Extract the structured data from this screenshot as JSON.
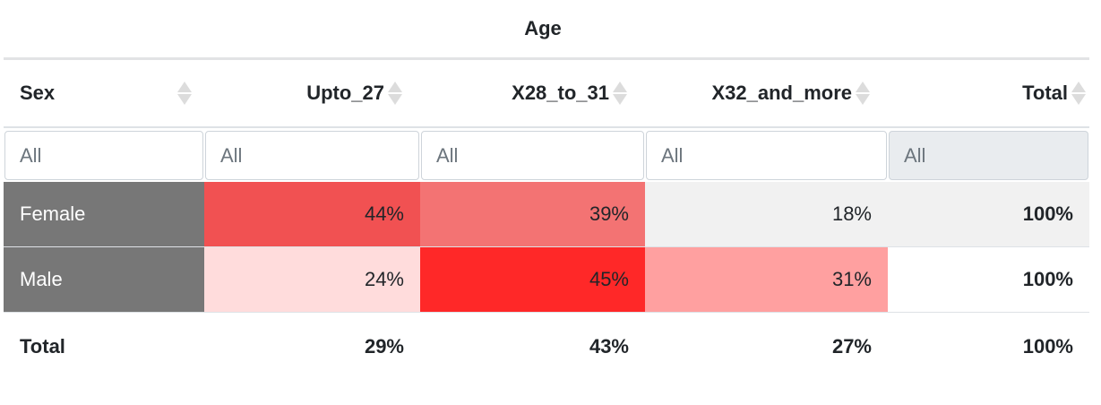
{
  "group_header": "Age",
  "columns": [
    {
      "label": "Sex",
      "align": "left"
    },
    {
      "label": "Upto_27",
      "align": "right"
    },
    {
      "label": "X28_to_31",
      "align": "right"
    },
    {
      "label": "X32_and_more",
      "align": "right"
    },
    {
      "label": "Total",
      "align": "right"
    }
  ],
  "filters": [
    "All",
    "All",
    "All",
    "All",
    "All"
  ],
  "rows": [
    {
      "label": "Female",
      "cells": [
        {
          "value": "44%",
          "bg": "#f15152"
        },
        {
          "value": "39%",
          "bg": "#f37373"
        },
        {
          "value": "18%",
          "bg": "#f1f1f1"
        }
      ],
      "total": "100%"
    },
    {
      "label": "Male",
      "cells": [
        {
          "value": "24%",
          "bg": "#ffdcdc"
        },
        {
          "value": "45%",
          "bg": "#ff2828"
        },
        {
          "value": "31%",
          "bg": "#ffa0a0"
        }
      ],
      "total": "100%"
    }
  ],
  "totals": {
    "label": "Total",
    "values": [
      "29%",
      "43%",
      "27%",
      "100%"
    ]
  },
  "colors": {
    "row_header_bg": "#777777",
    "header_rule": "#e2e3e5"
  }
}
